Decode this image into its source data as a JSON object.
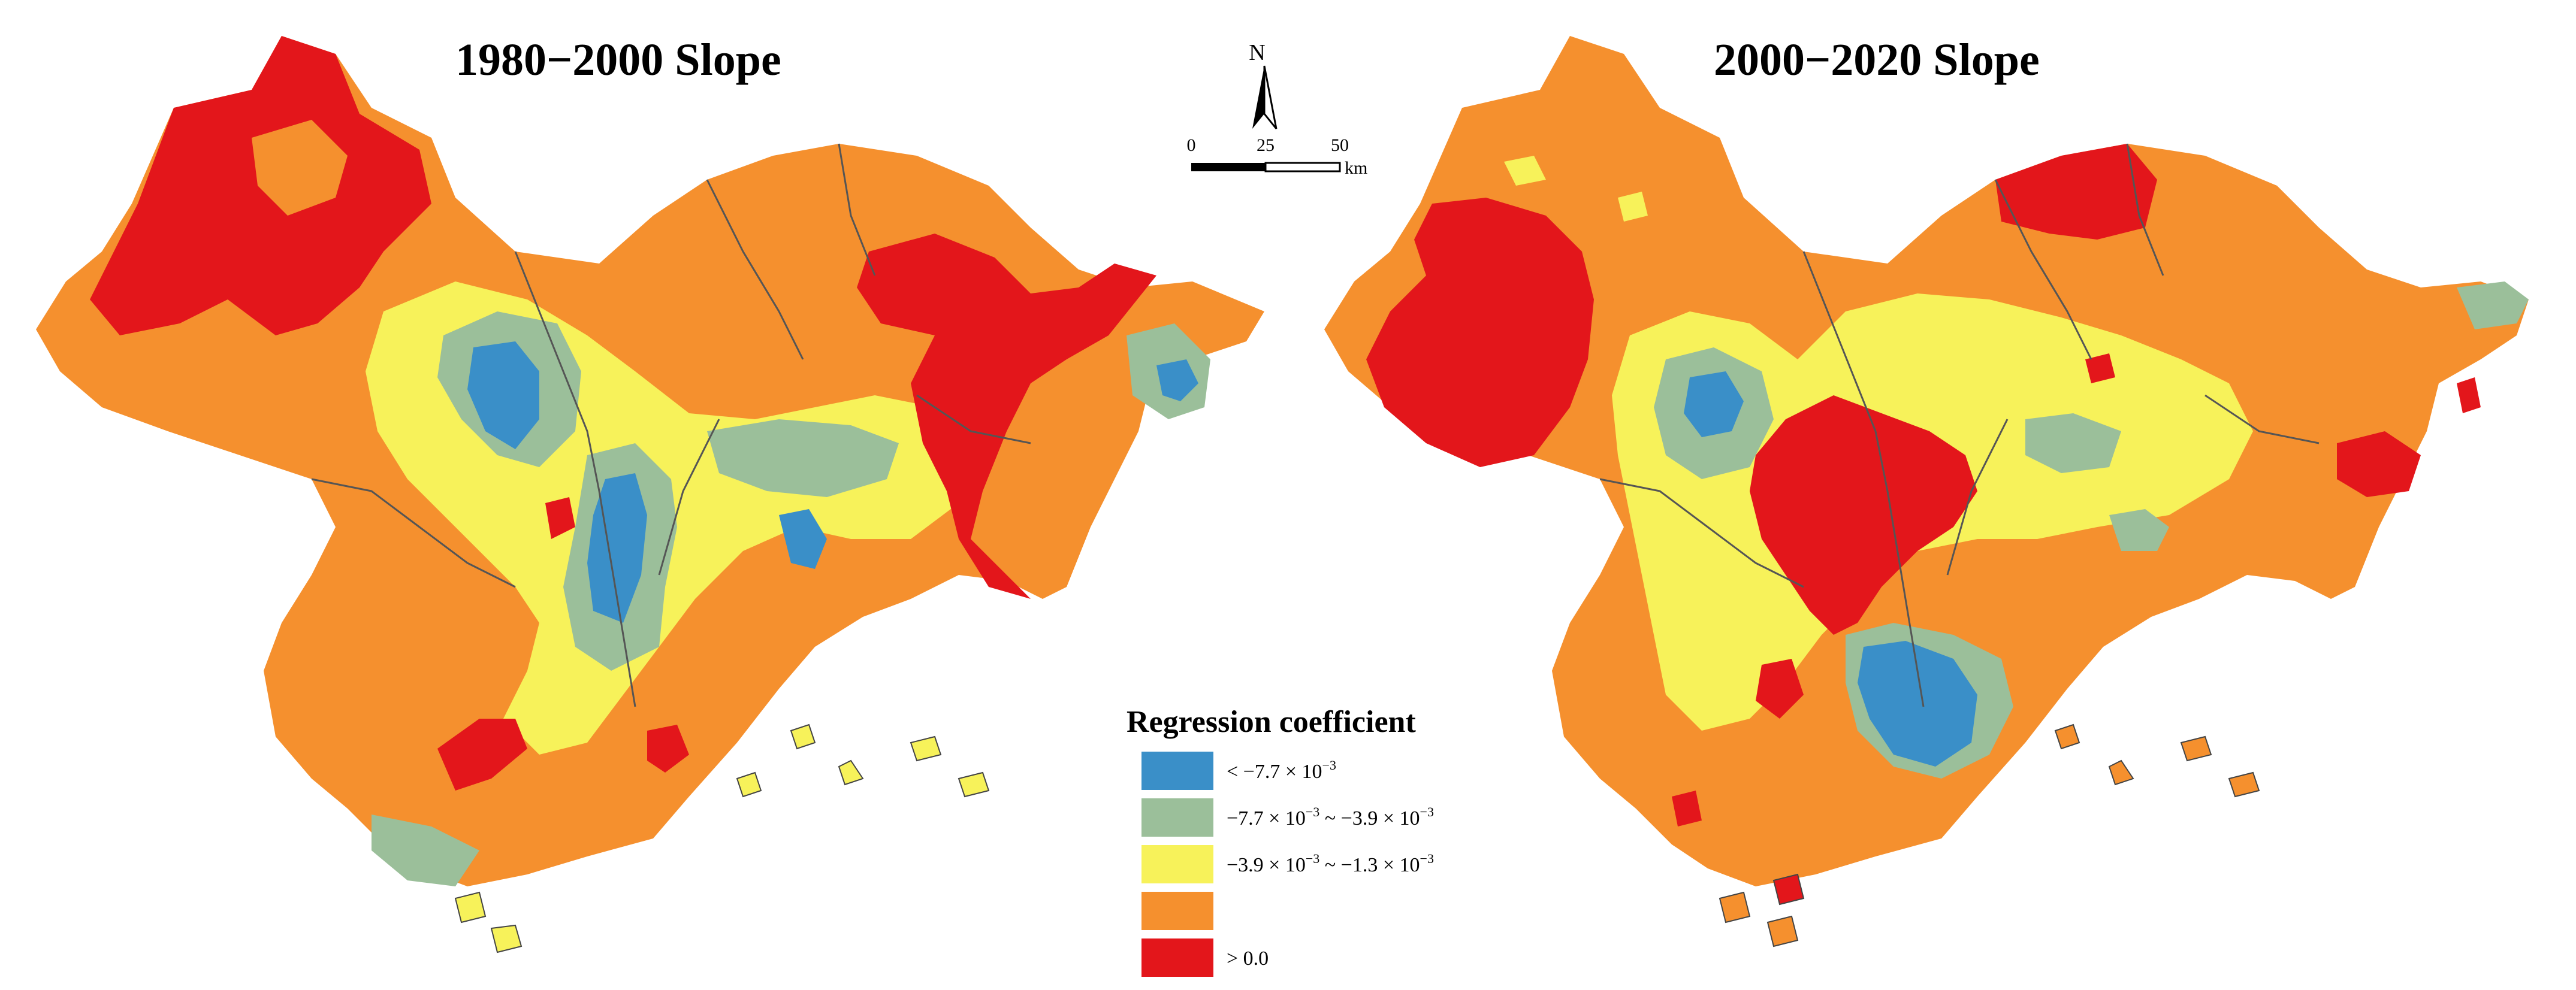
{
  "panels": [
    {
      "id": "left",
      "title": "1980−2000 Slope"
    },
    {
      "id": "right",
      "title": "2000−2020 Slope"
    }
  ],
  "north_arrow": {
    "label": "N"
  },
  "scale_bar": {
    "ticks": [
      "0",
      "25",
      "50"
    ],
    "unit": "km"
  },
  "legend": {
    "title": "Regression coefficient",
    "classes": [
      {
        "color": "#3a8fc8",
        "label_parts": [
          "< −7.7 × 10",
          "−3",
          ""
        ]
      },
      {
        "color": "#9bbf9a",
        "label_parts": [
          "−7.7 × 10",
          "−3",
          " ~ −3.9 × 10",
          "−3",
          ""
        ]
      },
      {
        "color": "#f7f25a",
        "label_parts": [
          "−3.9 × 10",
          "−3",
          " ~ −1.3 × 10",
          "−3",
          ""
        ]
      },
      {
        "color": "#f5902e",
        "label_parts": [
          ""
        ]
      },
      {
        "color": "#e3161b",
        "label_parts": [
          "> 0.0"
        ]
      }
    ]
  },
  "colors": {
    "blue": "#3a8fc8",
    "green": "#9bbf9a",
    "yellow": "#f7f25a",
    "orange": "#f5902e",
    "red": "#e3161b",
    "boundary": "#555555"
  }
}
